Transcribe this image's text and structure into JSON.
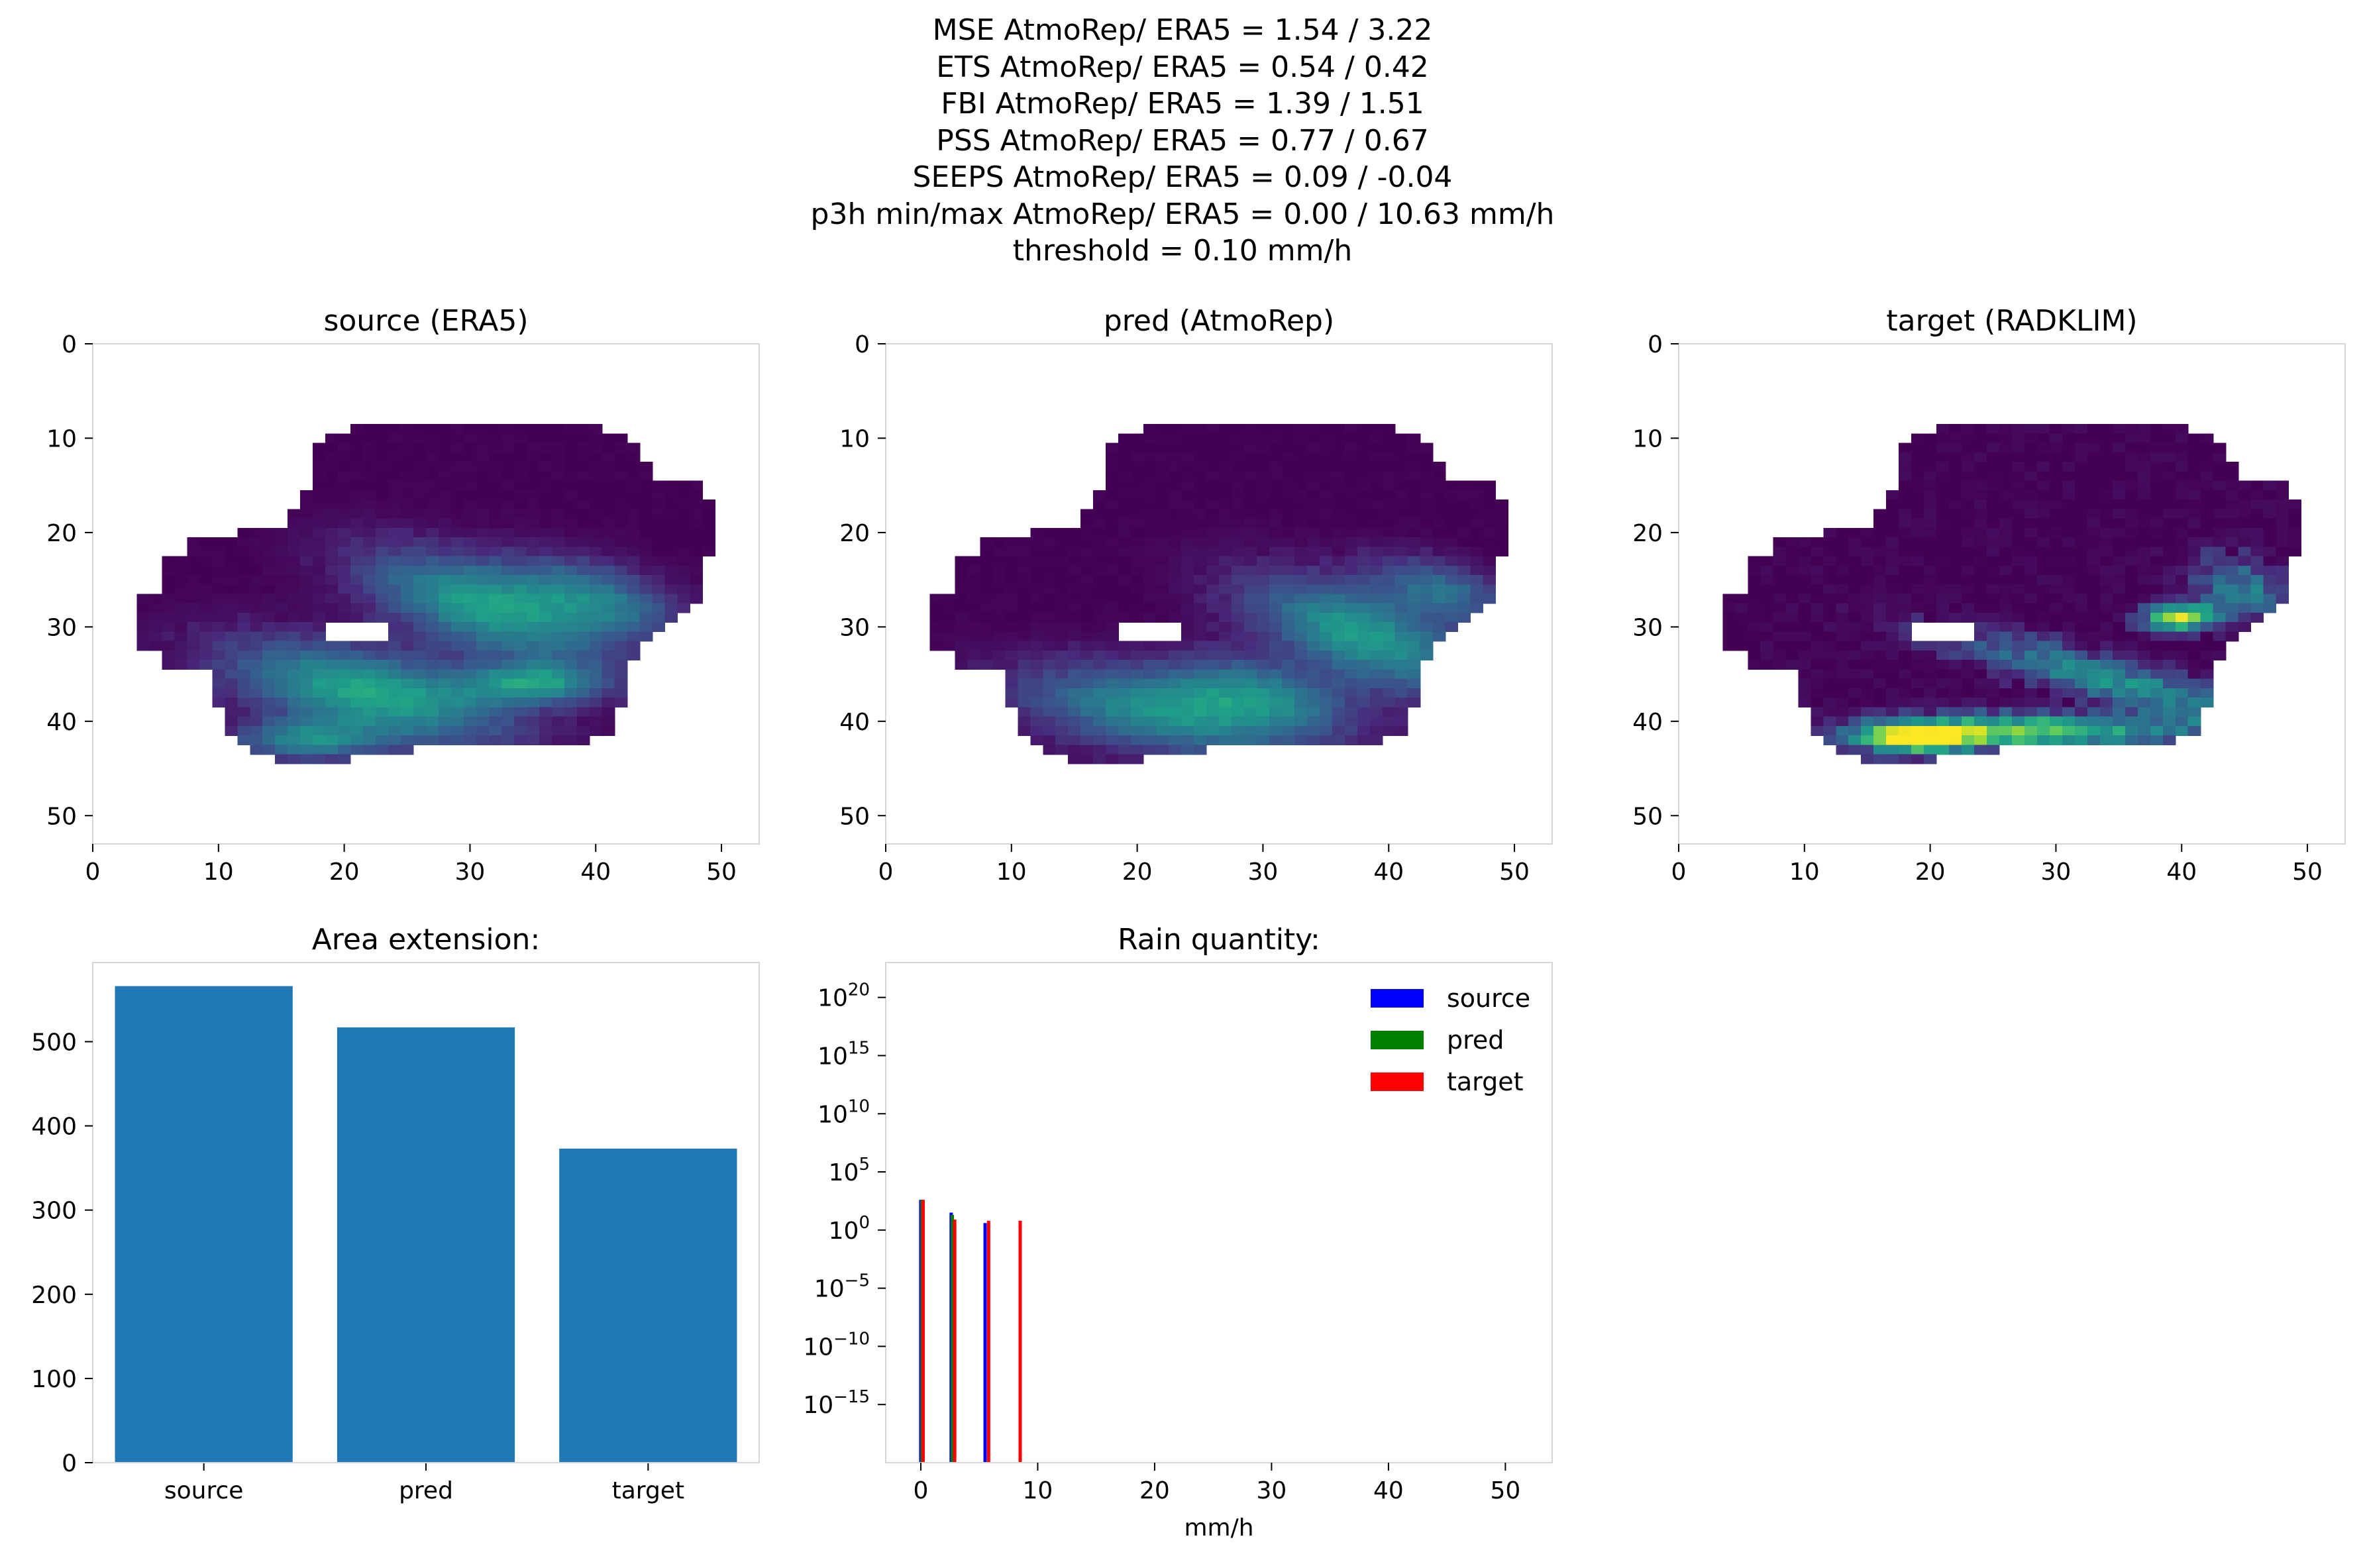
{
  "figure": {
    "suptitle_lines": [
      "MSE AtmoRep/ ERA5 = 1.54 / 3.22",
      "ETS AtmoRep/ ERA5 = 0.54 / 0.42",
      "FBI AtmoRep/ ERA5 = 1.39 / 1.51",
      "PSS AtmoRep/ ERA5 = 0.77 / 0.67",
      "SEEPS AtmoRep/ ERA5 = 0.09 / -0.04",
      "p3h min/max AtmoRep/ ERA5 = 0.00 / 10.63 mm/h",
      "threshold = 0.10 mm/h"
    ]
  },
  "chart_data": [
    {
      "type": "heatmap",
      "title": "source (ERA5)",
      "colormap": "viridis",
      "xlim": [
        0,
        53
      ],
      "ylim": [
        53,
        0
      ],
      "xticks": [
        0,
        10,
        20,
        30,
        40,
        50
      ],
      "yticks": [
        0,
        10,
        20,
        30,
        40,
        50
      ],
      "grid": false,
      "mask_rows": [
        {
          "y": 9,
          "x0": 21,
          "x1": 40
        },
        {
          "y": 10,
          "x0": 19,
          "x1": 42
        },
        {
          "y": 11,
          "x0": 18,
          "x1": 43
        },
        {
          "y": 12,
          "x0": 18,
          "x1": 43
        },
        {
          "y": 13,
          "x0": 18,
          "x1": 44
        },
        {
          "y": 14,
          "x0": 18,
          "x1": 44
        },
        {
          "y": 15,
          "x0": 18,
          "x1": 48
        },
        {
          "y": 16,
          "x0": 17,
          "x1": 48
        },
        {
          "y": 17,
          "x0": 17,
          "x1": 49
        },
        {
          "y": 18,
          "x0": 16,
          "x1": 49
        },
        {
          "y": 19,
          "x0": 16,
          "x1": 49
        },
        {
          "y": 20,
          "x0": 12,
          "x1": 49
        },
        {
          "y": 21,
          "x0": 8,
          "x1": 49
        },
        {
          "y": 22,
          "x0": 8,
          "x1": 49
        },
        {
          "y": 23,
          "x0": 6,
          "x1": 48
        },
        {
          "y": 24,
          "x0": 6,
          "x1": 48
        },
        {
          "y": 25,
          "x0": 6,
          "x1": 48
        },
        {
          "y": 26,
          "x0": 6,
          "x1": 48
        },
        {
          "y": 27,
          "x0": 4,
          "x1": 48
        },
        {
          "y": 28,
          "x0": 4,
          "x1": 47
        },
        {
          "y": 29,
          "x0": 4,
          "x1": 46
        },
        {
          "y": 30,
          "x0": 4,
          "x1": 45
        },
        {
          "y": 31,
          "x0": 4,
          "x1": 44
        },
        {
          "y": 32,
          "x0": 4,
          "x1": 43
        },
        {
          "y": 33,
          "x0": 6,
          "x1": 43
        },
        {
          "y": 34,
          "x0": 6,
          "x1": 42
        },
        {
          "y": 35,
          "x0": 10,
          "x1": 42
        },
        {
          "y": 36,
          "x0": 10,
          "x1": 42
        },
        {
          "y": 37,
          "x0": 10,
          "x1": 42
        },
        {
          "y": 38,
          "x0": 10,
          "x1": 42
        },
        {
          "y": 39,
          "x0": 11,
          "x1": 41
        },
        {
          "y": 40,
          "x0": 11,
          "x1": 41
        },
        {
          "y": 41,
          "x0": 11,
          "x1": 41
        },
        {
          "y": 42,
          "x0": 12,
          "x1": 39
        },
        {
          "y": 43,
          "x0": 13,
          "x1": 25
        },
        {
          "y": 44,
          "x0": 15,
          "x1": 20
        }
      ],
      "hole": {
        "x0": 19,
        "x1": 23,
        "y0": 30,
        "y1": 31
      },
      "rain_blobs": [
        {
          "x": 31,
          "y": 28,
          "sx": 7,
          "sy": 3,
          "rot": -0.45,
          "a": 0.55
        },
        {
          "x": 22,
          "y": 37,
          "sx": 8,
          "sy": 3,
          "rot": -0.3,
          "a": 0.6
        },
        {
          "x": 35,
          "y": 36,
          "sx": 4,
          "sy": 1.5,
          "rot": 0,
          "a": 0.5
        },
        {
          "x": 40,
          "y": 27,
          "sx": 5,
          "sy": 2.5,
          "rot": -0.4,
          "a": 0.4
        },
        {
          "x": 17,
          "y": 42,
          "sx": 4,
          "sy": 1.5,
          "rot": 0,
          "a": 0.45
        }
      ]
    },
    {
      "type": "heatmap",
      "title": "pred (AtmoRep)",
      "colormap": "viridis",
      "xlim": [
        0,
        53
      ],
      "ylim": [
        53,
        0
      ],
      "xticks": [
        0,
        10,
        20,
        30,
        40,
        50
      ],
      "yticks": [
        0,
        10,
        20,
        30,
        40,
        50
      ],
      "grid": false,
      "rain_blobs": [
        {
          "x": 38,
          "y": 31,
          "sx": 7,
          "sy": 3,
          "rot": -0.5,
          "a": 0.55
        },
        {
          "x": 22,
          "y": 39,
          "sx": 8,
          "sy": 3,
          "rot": -0.2,
          "a": 0.5
        },
        {
          "x": 44,
          "y": 26,
          "sx": 4,
          "sy": 2,
          "rot": -0.4,
          "a": 0.35
        },
        {
          "x": 30,
          "y": 37,
          "sx": 5,
          "sy": 2.5,
          "rot": -0.3,
          "a": 0.35
        }
      ]
    },
    {
      "type": "heatmap",
      "title": "target (RADKLIM)",
      "colormap": "viridis",
      "xlim": [
        0,
        53
      ],
      "ylim": [
        53,
        0
      ],
      "xticks": [
        0,
        10,
        20,
        30,
        40,
        50
      ],
      "yticks": [
        0,
        10,
        20,
        30,
        40,
        50
      ],
      "grid": false,
      "rain_blobs": [
        {
          "x": 27,
          "y": 41,
          "sx": 9,
          "sy": 1.2,
          "rot": 0,
          "a": 0.8
        },
        {
          "x": 19,
          "y": 42,
          "sx": 3,
          "sy": 1,
          "rot": 0,
          "a": 0.85
        },
        {
          "x": 35,
          "y": 36,
          "sx": 9,
          "sy": 1.6,
          "rot": -0.35,
          "a": 0.5
        },
        {
          "x": 40,
          "y": 29,
          "sx": 2,
          "sy": 1,
          "rot": 0,
          "a": 0.95
        },
        {
          "x": 45,
          "y": 26,
          "sx": 3,
          "sy": 2,
          "rot": -0.5,
          "a": 0.4
        }
      ]
    },
    {
      "type": "bar",
      "title": "Area extension:",
      "categories": [
        "source",
        "pred",
        "target"
      ],
      "values": [
        566,
        517,
        373
      ],
      "ylim": [
        0,
        594
      ],
      "yticks": [
        0,
        100,
        200,
        300,
        400,
        500
      ],
      "color": "#1f77b4",
      "grid": false
    },
    {
      "type": "bar",
      "title": "Rain quantity:",
      "xlabel": "mm/h",
      "yscale": "log",
      "xlim": [
        -3,
        54
      ],
      "ylim_exponent": [
        -20,
        23
      ],
      "xticks": [
        0,
        10,
        20,
        30,
        40,
        50
      ],
      "yticks": [
        {
          "base": "10",
          "exp": "20",
          "value": 20
        },
        {
          "base": "10",
          "exp": "15",
          "value": 15
        },
        {
          "base": "10",
          "exp": "10",
          "value": 10
        },
        {
          "base": "10",
          "exp": "5",
          "value": 5
        },
        {
          "base": "10",
          "exp": "0",
          "value": 0
        },
        {
          "base": "10",
          "exp": "−5",
          "value": -5
        },
        {
          "base": "10",
          "exp": "−10",
          "value": -10
        },
        {
          "base": "10",
          "exp": "−15",
          "value": -15
        }
      ],
      "legend_position": "upper-right",
      "series": [
        {
          "name": "source",
          "color": "#0000ff",
          "bins": [
            {
              "x": 0.0,
              "v": 2.6
            },
            {
              "x": 2.6,
              "v": 1.5
            },
            {
              "x": 5.5,
              "v": 0.6
            }
          ]
        },
        {
          "name": "pred",
          "color": "#008000",
          "bins": [
            {
              "x": 0.1,
              "v": 2.6
            },
            {
              "x": 2.7,
              "v": 1.3
            }
          ]
        },
        {
          "name": "target",
          "color": "#ff0000",
          "bins": [
            {
              "x": 0.2,
              "v": 2.6
            },
            {
              "x": 2.9,
              "v": 0.9
            },
            {
              "x": 5.8,
              "v": 0.8
            },
            {
              "x": 8.5,
              "v": 0.8
            }
          ]
        }
      ],
      "grid": false
    }
  ]
}
